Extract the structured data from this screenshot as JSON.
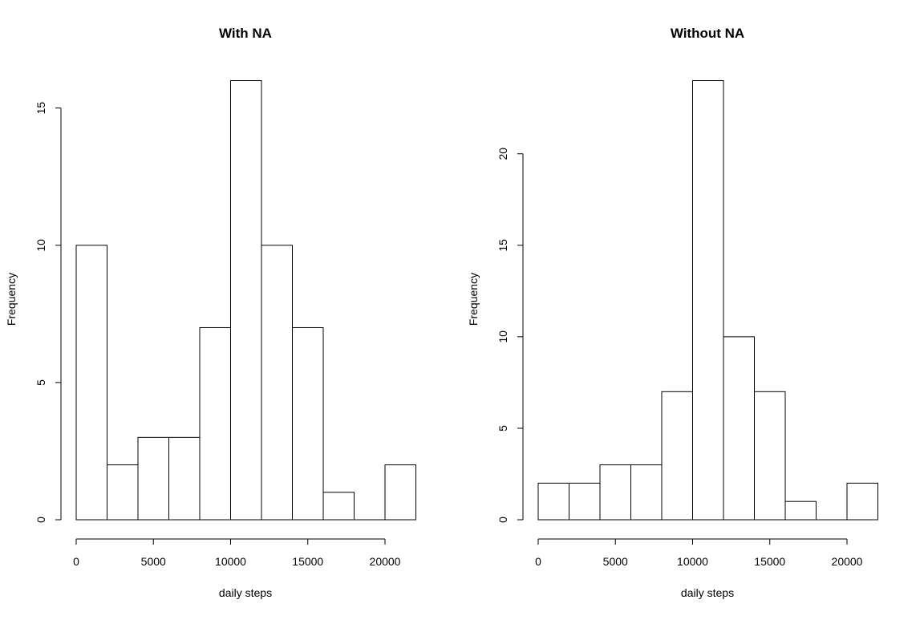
{
  "chart_data": [
    {
      "type": "bar",
      "title": "With NA",
      "xlabel": "daily steps",
      "ylabel": "Frequency",
      "bin_edges": [
        0,
        2000,
        4000,
        6000,
        8000,
        10000,
        12000,
        14000,
        16000,
        18000,
        20000,
        22000
      ],
      "values": [
        10,
        2,
        3,
        3,
        7,
        16,
        10,
        7,
        1,
        0,
        2
      ],
      "xlim": [
        0,
        22000
      ],
      "ylim": [
        0,
        16
      ],
      "x_ticks": [
        0,
        5000,
        10000,
        15000,
        20000
      ],
      "y_ticks": [
        0,
        5,
        10,
        15
      ],
      "grid": false,
      "legend": "none"
    },
    {
      "type": "bar",
      "title": "Without NA",
      "xlabel": "daily steps",
      "ylabel": "Frequency",
      "bin_edges": [
        0,
        2000,
        4000,
        6000,
        8000,
        10000,
        12000,
        14000,
        16000,
        18000,
        20000,
        22000
      ],
      "values": [
        2,
        2,
        3,
        3,
        7,
        24,
        10,
        7,
        1,
        0,
        2
      ],
      "xlim": [
        0,
        22000
      ],
      "ylim": [
        0,
        24
      ],
      "x_ticks": [
        0,
        5000,
        10000,
        15000,
        20000
      ],
      "y_ticks": [
        0,
        5,
        10,
        15,
        20
      ],
      "grid": false,
      "legend": "none"
    }
  ],
  "colors": {
    "bar_fill": "#ffffff",
    "bar_stroke": "#000000",
    "background": "#ffffff"
  }
}
